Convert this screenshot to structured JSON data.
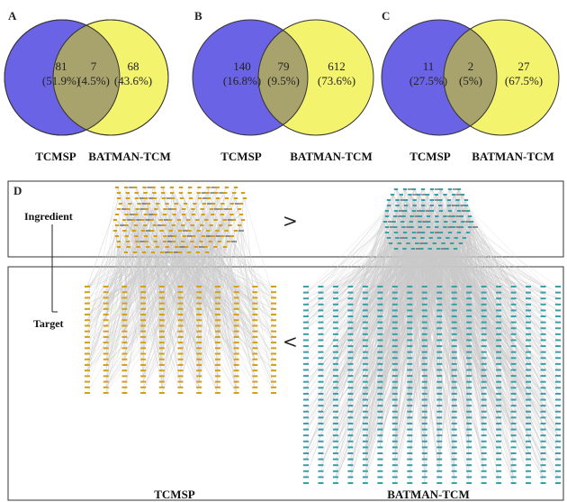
{
  "venn": [
    {
      "letter": "A",
      "left_label": "TCMSP",
      "right_label": "BATMAN-TCM",
      "left": {
        "count": "81",
        "pct": "(51.9%)"
      },
      "overlap": {
        "count": "7",
        "pct": "(4.5%)"
      },
      "right": {
        "count": "68",
        "pct": "(43.6%)"
      }
    },
    {
      "letter": "B",
      "left_label": "TCMSP",
      "right_label": "BATMAN-TCM",
      "left": {
        "count": "140",
        "pct": "(16.8%)"
      },
      "overlap": {
        "count": "79",
        "pct": "(9.5%)"
      },
      "right": {
        "count": "612",
        "pct": "(73.6%)"
      }
    },
    {
      "letter": "C",
      "left_label": "TCMSP",
      "right_label": "BATMAN-TCM",
      "left": {
        "count": "11",
        "pct": "(27.5%)"
      },
      "overlap": {
        "count": "2",
        "pct": "(5%)"
      },
      "right": {
        "count": "27",
        "pct": "(67.5%)"
      }
    }
  ],
  "network": {
    "letter": "D",
    "ingredient_label": "Ingredient",
    "target_label": "Target",
    "ingredient_comparison": ">",
    "target_comparison": "<",
    "left_label": "TCMSP",
    "right_label": "BATMAN-TCM"
  },
  "colors": {
    "left_set": "#6b63e6",
    "right_set": "#f3f36e",
    "overlap": "#a8a36c",
    "tcmsp_nodes": "#d4a017",
    "batman_nodes": "#3a9fa8",
    "edges": "#c9c9c9"
  }
}
